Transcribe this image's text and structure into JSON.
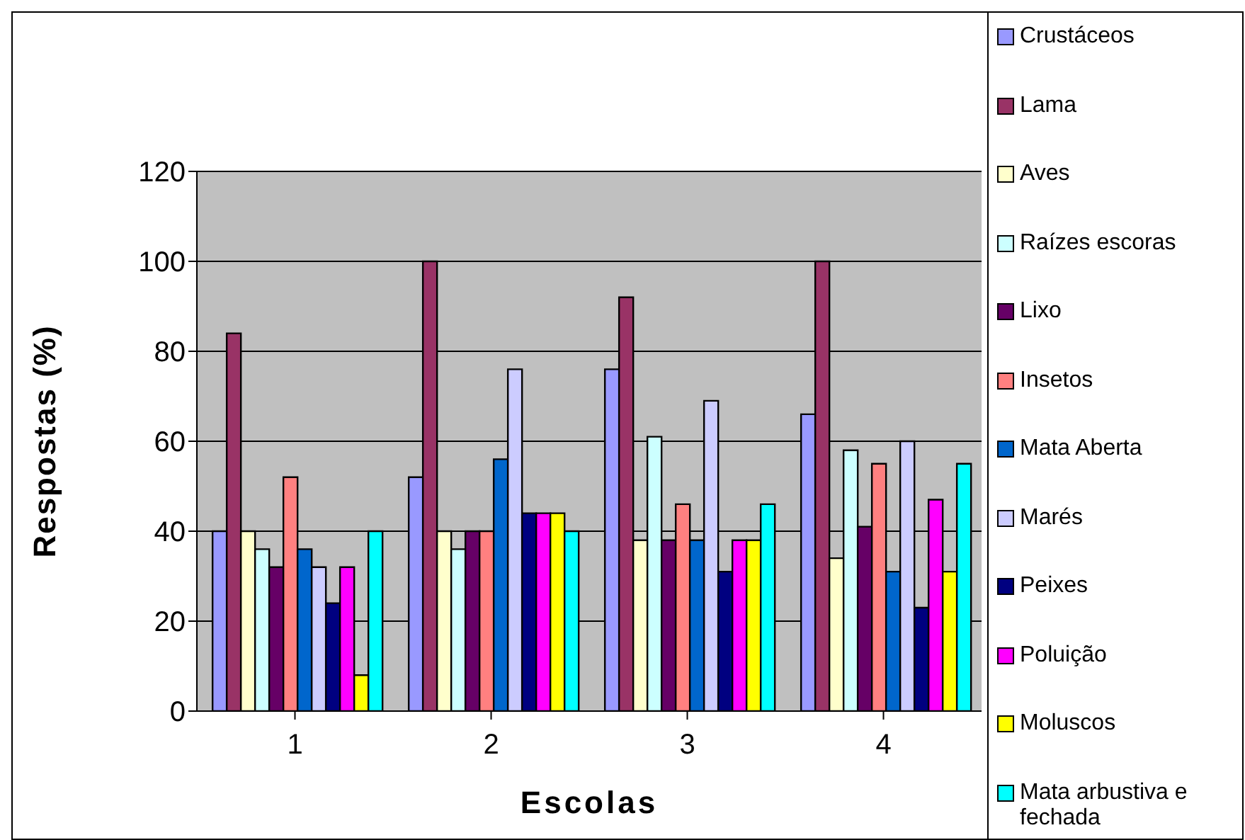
{
  "chart_data": {
    "type": "bar",
    "xlabel": "Escolas",
    "ylabel": "Respostas (%)",
    "categories": [
      "1",
      "2",
      "3",
      "4"
    ],
    "ylim": [
      0,
      120
    ],
    "yticks": [
      0,
      20,
      40,
      60,
      80,
      100,
      120
    ],
    "grid": "y",
    "legend": "right",
    "series": [
      {
        "name": "Crustáceos",
        "color": "#9999ff",
        "values": [
          40,
          52,
          76,
          66
        ]
      },
      {
        "name": "Lama",
        "color": "#993366",
        "values": [
          84,
          100,
          92,
          100
        ]
      },
      {
        "name": "Aves",
        "color": "#ffffcc",
        "values": [
          40,
          40,
          38,
          34
        ]
      },
      {
        "name": "Raízes escoras",
        "color": "#ccffff",
        "values": [
          36,
          36,
          61,
          58
        ]
      },
      {
        "name": "Lixo",
        "color": "#660066",
        "values": [
          32,
          40,
          38,
          41
        ]
      },
      {
        "name": "Insetos",
        "color": "#ff8080",
        "values": [
          52,
          40,
          46,
          55
        ]
      },
      {
        "name": "Mata Aberta",
        "color": "#0066cc",
        "values": [
          36,
          56,
          38,
          31
        ]
      },
      {
        "name": "Marés",
        "color": "#ccccff",
        "values": [
          32,
          76,
          69,
          60
        ]
      },
      {
        "name": "Peixes",
        "color": "#000080",
        "values": [
          24,
          44,
          31,
          23
        ]
      },
      {
        "name": "Poluição",
        "color": "#ff00ff",
        "values": [
          32,
          44,
          38,
          47
        ]
      },
      {
        "name": "Moluscos",
        "color": "#ffff00",
        "values": [
          8,
          44,
          38,
          31
        ]
      },
      {
        "name": "Mata arbustiva e fechada",
        "color": "#00ffff",
        "values": [
          40,
          40,
          46,
          55
        ]
      }
    ]
  }
}
